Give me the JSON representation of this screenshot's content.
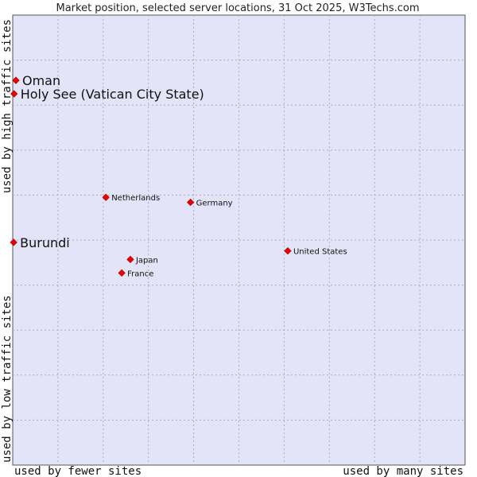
{
  "chart_data": {
    "type": "scatter",
    "title": "Market position, selected server locations, 31 Oct 2025, W3Techs.com",
    "xlabel_left": "used by fewer sites",
    "xlabel_right": "used by many sites",
    "ylabel_bottom": "used by low traffic sites",
    "ylabel_top": "used by high traffic sites",
    "xlim": [
      0,
      100
    ],
    "ylim": [
      0,
      100
    ],
    "grid": true,
    "background": "#e4e4f8",
    "point_color": "#ee0000",
    "points": [
      {
        "name": "Oman",
        "x": 0.7,
        "y": 85.5,
        "highlight": true
      },
      {
        "name": "Holy See (Vatican City State)",
        "x": 0.3,
        "y": 82.5,
        "highlight": true
      },
      {
        "name": "Burundi",
        "x": 0.2,
        "y": 49.5,
        "highlight": true
      },
      {
        "name": "Netherlands",
        "x": 20.6,
        "y": 59.5,
        "highlight": false
      },
      {
        "name": "Germany",
        "x": 39.3,
        "y": 58.4,
        "highlight": false
      },
      {
        "name": "United States",
        "x": 60.8,
        "y": 47.6,
        "highlight": false
      },
      {
        "name": "Japan",
        "x": 26.0,
        "y": 45.7,
        "highlight": false
      },
      {
        "name": "France",
        "x": 24.1,
        "y": 42.7,
        "highlight": false
      }
    ]
  }
}
